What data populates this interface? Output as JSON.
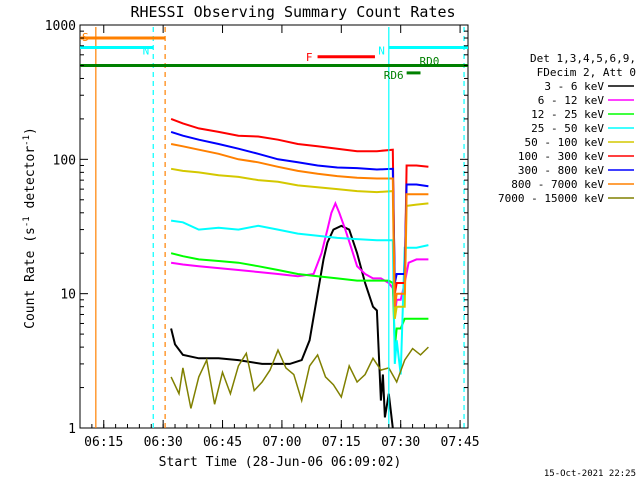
{
  "chart_data": {
    "type": "line",
    "title": "RHESSI Observing Summary Count Rates",
    "xlabel": "Start Time (28-Jun-06 06:09:02)",
    "ylabel": "Count Rate (s⁻¹ detector⁻¹)",
    "ylabel_main": "Count Rate (s",
    "ylabel_sup1": "-1",
    "ylabel_mid": " detector",
    "ylabel_sup2": "-1",
    "ylabel_end": ")",
    "yscale": "log",
    "xlim_minutes": [
      0,
      98
    ],
    "ylim": [
      1,
      1000
    ],
    "x_ticks": [
      {
        "label": "06:15",
        "t": 6
      },
      {
        "label": "06:30",
        "t": 21
      },
      {
        "label": "06:45",
        "t": 36
      },
      {
        "label": "07:00",
        "t": 51
      },
      {
        "label": "07:15",
        "t": 66
      },
      {
        "label": "07:30",
        "t": 81
      },
      {
        "label": "07:45",
        "t": 96
      }
    ],
    "y_ticks": [
      {
        "label": "1",
        "v": 1
      },
      {
        "label": "10",
        "v": 10
      },
      {
        "label": "100",
        "v": 100
      },
      {
        "label": "1000",
        "v": 1000
      }
    ],
    "legend": {
      "header1": "Det 1,3,4,5,6,9,",
      "header2": "FDecim 2, Att 0",
      "entries": [
        {
          "label": "3 - 6 keV",
          "color": "#000000"
        },
        {
          "label": "6 - 12 keV",
          "color": "#ff00ff"
        },
        {
          "label": "12 - 25 keV",
          "color": "#00ff00"
        },
        {
          "label": "25 - 50 keV",
          "color": "#00ffff"
        },
        {
          "label": "50 - 100 keV",
          "color": "#d4c800"
        },
        {
          "label": "100 - 300 keV",
          "color": "#ff0000"
        },
        {
          "label": "300 - 800 keV",
          "color": "#0000ff"
        },
        {
          "label": "800 - 7000 keV",
          "color": "#ff8000"
        },
        {
          "label": "7000 - 15000 keV",
          "color": "#808000"
        }
      ]
    },
    "series": [
      {
        "name": "3 - 6 keV",
        "color": "#000000",
        "points": [
          [
            23,
            5.5
          ],
          [
            24,
            4.2
          ],
          [
            26,
            3.5
          ],
          [
            30,
            3.3
          ],
          [
            35,
            3.3
          ],
          [
            40,
            3.2
          ],
          [
            46,
            3.0
          ],
          [
            50,
            3.0
          ],
          [
            53,
            3.0
          ],
          [
            56,
            3.2
          ],
          [
            58,
            4.5
          ],
          [
            60,
            10
          ],
          [
            61.5,
            18
          ],
          [
            62.5,
            24
          ],
          [
            64,
            30
          ],
          [
            66,
            32
          ],
          [
            68,
            30
          ],
          [
            70,
            20
          ],
          [
            72,
            12
          ],
          [
            74,
            8
          ],
          [
            75,
            7.5
          ],
          [
            76,
            1.6
          ],
          [
            76.5,
            2.5
          ],
          [
            77,
            1.2
          ],
          [
            78,
            1.8
          ],
          [
            79,
            1.0
          ]
        ]
      },
      {
        "name": "6 - 12 keV",
        "color": "#ff00ff",
        "points": [
          [
            23,
            17
          ],
          [
            26,
            16.5
          ],
          [
            30,
            16
          ],
          [
            35,
            15.5
          ],
          [
            40,
            15
          ],
          [
            45,
            14.5
          ],
          [
            50,
            14
          ],
          [
            55,
            13.5
          ],
          [
            59,
            14
          ],
          [
            61,
            20
          ],
          [
            62.5,
            30
          ],
          [
            63.5,
            40
          ],
          [
            64.5,
            47
          ],
          [
            65.5,
            40
          ],
          [
            67,
            30
          ],
          [
            68.5,
            22
          ],
          [
            70,
            16
          ],
          [
            72,
            14
          ],
          [
            74,
            13
          ],
          [
            76,
            13
          ],
          [
            78,
            12
          ],
          [
            79,
            11
          ],
          [
            79.5,
            7
          ],
          [
            80,
            9
          ],
          [
            81,
            9
          ],
          [
            82,
            12
          ],
          [
            83,
            17
          ],
          [
            85,
            18
          ],
          [
            88,
            18
          ]
        ]
      },
      {
        "name": "12 - 25 keV",
        "color": "#00ff00",
        "points": [
          [
            23,
            20
          ],
          [
            26,
            19
          ],
          [
            30,
            18
          ],
          [
            35,
            17.5
          ],
          [
            40,
            17
          ],
          [
            45,
            16
          ],
          [
            50,
            15
          ],
          [
            55,
            14
          ],
          [
            60,
            13.5
          ],
          [
            65,
            13
          ],
          [
            70,
            12.5
          ],
          [
            75,
            12.5
          ],
          [
            78,
            12.5
          ],
          [
            79,
            12
          ],
          [
            79.5,
            4
          ],
          [
            80,
            5.5
          ],
          [
            81,
            5.5
          ],
          [
            82,
            6.5
          ],
          [
            85,
            6.5
          ],
          [
            88,
            6.5
          ]
        ]
      },
      {
        "name": "25 - 50 keV",
        "color": "#00ffff",
        "points": [
          [
            23,
            35
          ],
          [
            26,
            34
          ],
          [
            30,
            30
          ],
          [
            35,
            31
          ],
          [
            40,
            30
          ],
          [
            45,
            32
          ],
          [
            50,
            30
          ],
          [
            55,
            28
          ],
          [
            60,
            27
          ],
          [
            65,
            26
          ],
          [
            70,
            25.5
          ],
          [
            75,
            25
          ],
          [
            79,
            25
          ],
          [
            79.5,
            3
          ],
          [
            80,
            4.5
          ],
          [
            81,
            2.5
          ],
          [
            82,
            22
          ],
          [
            85,
            22
          ],
          [
            88,
            23
          ]
        ]
      },
      {
        "name": "50 - 100 keV",
        "color": "#d4c800",
        "points": [
          [
            23,
            85
          ],
          [
            26,
            82
          ],
          [
            30,
            80
          ],
          [
            35,
            76
          ],
          [
            40,
            74
          ],
          [
            45,
            70
          ],
          [
            50,
            68
          ],
          [
            55,
            64
          ],
          [
            60,
            62
          ],
          [
            65,
            60
          ],
          [
            70,
            58
          ],
          [
            75,
            57
          ],
          [
            79,
            58
          ],
          [
            79.5,
            6.5
          ],
          [
            80,
            8
          ],
          [
            82,
            8
          ],
          [
            82.5,
            45
          ],
          [
            85,
            46
          ],
          [
            88,
            47
          ]
        ]
      },
      {
        "name": "100 - 300 keV",
        "color": "#ff0000",
        "points": [
          [
            23,
            200
          ],
          [
            26,
            185
          ],
          [
            30,
            170
          ],
          [
            35,
            160
          ],
          [
            40,
            150
          ],
          [
            45,
            148
          ],
          [
            50,
            140
          ],
          [
            55,
            130
          ],
          [
            60,
            125
          ],
          [
            65,
            120
          ],
          [
            70,
            115
          ],
          [
            75,
            115
          ],
          [
            79,
            118
          ],
          [
            79.5,
            10
          ],
          [
            80,
            12
          ],
          [
            82,
            12
          ],
          [
            82.5,
            90
          ],
          [
            85,
            90
          ],
          [
            88,
            88
          ]
        ]
      },
      {
        "name": "300 - 800 keV",
        "color": "#0000ff",
        "points": [
          [
            23,
            160
          ],
          [
            26,
            150
          ],
          [
            30,
            140
          ],
          [
            35,
            130
          ],
          [
            40,
            120
          ],
          [
            45,
            110
          ],
          [
            50,
            100
          ],
          [
            55,
            95
          ],
          [
            60,
            90
          ],
          [
            65,
            87
          ],
          [
            70,
            86
          ],
          [
            75,
            84
          ],
          [
            79,
            85
          ],
          [
            79.5,
            12
          ],
          [
            80,
            14
          ],
          [
            82,
            14
          ],
          [
            82.5,
            65
          ],
          [
            85,
            65
          ],
          [
            88,
            63
          ]
        ]
      },
      {
        "name": "800 - 7000 keV",
        "color": "#ff8000",
        "points": [
          [
            23,
            130
          ],
          [
            26,
            125
          ],
          [
            30,
            118
          ],
          [
            35,
            110
          ],
          [
            40,
            100
          ],
          [
            45,
            95
          ],
          [
            50,
            88
          ],
          [
            55,
            82
          ],
          [
            60,
            78
          ],
          [
            65,
            75
          ],
          [
            70,
            73
          ],
          [
            75,
            72
          ],
          [
            79,
            72
          ],
          [
            79.5,
            8
          ],
          [
            80,
            10
          ],
          [
            82,
            10
          ],
          [
            82.5,
            55
          ],
          [
            85,
            55
          ],
          [
            88,
            55
          ]
        ]
      },
      {
        "name": "7000 - 15000 keV",
        "color": "#808000",
        "points": [
          [
            23,
            2.4
          ],
          [
            25,
            1.8
          ],
          [
            26,
            2.8
          ],
          [
            28,
            1.4
          ],
          [
            30,
            2.4
          ],
          [
            32,
            3.2
          ],
          [
            34,
            1.5
          ],
          [
            36,
            2.6
          ],
          [
            38,
            1.8
          ],
          [
            40,
            2.9
          ],
          [
            42,
            3.6
          ],
          [
            44,
            1.9
          ],
          [
            46,
            2.2
          ],
          [
            48,
            2.7
          ],
          [
            50,
            3.8
          ],
          [
            52,
            2.8
          ],
          [
            54,
            2.5
          ],
          [
            56,
            1.6
          ],
          [
            58,
            2.9
          ],
          [
            60,
            3.5
          ],
          [
            62,
            2.4
          ],
          [
            64,
            2.1
          ],
          [
            66,
            1.7
          ],
          [
            68,
            2.9
          ],
          [
            70,
            2.2
          ],
          [
            72,
            2.5
          ],
          [
            74,
            3.3
          ],
          [
            76,
            2.7
          ],
          [
            78,
            2.8
          ],
          [
            80,
            2.2
          ],
          [
            82,
            3.2
          ],
          [
            84,
            3.9
          ],
          [
            86,
            3.5
          ],
          [
            88,
            4.0
          ]
        ]
      }
    ],
    "state_bars": [
      {
        "label": "S",
        "color": "#ff8000",
        "t_start": 0,
        "t_end": 21.5,
        "v": 800
      },
      {
        "label": "N",
        "color": "#00ffff",
        "t_start": 0,
        "t_end": 18.5,
        "v": 680
      },
      {
        "label": "N",
        "color": "#00ffff",
        "t_start": 78,
        "t_end": 98,
        "v": 680
      },
      {
        "label": "F",
        "color": "#ff0000",
        "t_start": 60,
        "t_end": 74.5,
        "v": 580
      },
      {
        "label": "",
        "color": "#008000",
        "t_start": 0,
        "t_end": 98,
        "v": 500
      },
      {
        "label": "RD6",
        "color": "#008000",
        "t_start": 82.5,
        "t_end": 86,
        "v": 440
      },
      {
        "label": "RD0",
        "color": "#008000",
        "t_start": 86,
        "t_end": 86,
        "v": 520
      }
    ],
    "vlines": [
      {
        "t": 4,
        "color": "#ff8000",
        "dashed": false
      },
      {
        "t": 18.5,
        "color": "#00ffff",
        "dashed": true
      },
      {
        "t": 21.5,
        "color": "#ff8000",
        "dashed": true
      },
      {
        "t": 78,
        "color": "#00ffff",
        "dashed": false
      },
      {
        "t": 97,
        "color": "#00ffff",
        "dashed": true
      }
    ],
    "footer_timestamp": "15-Oct-2021 22:25"
  }
}
